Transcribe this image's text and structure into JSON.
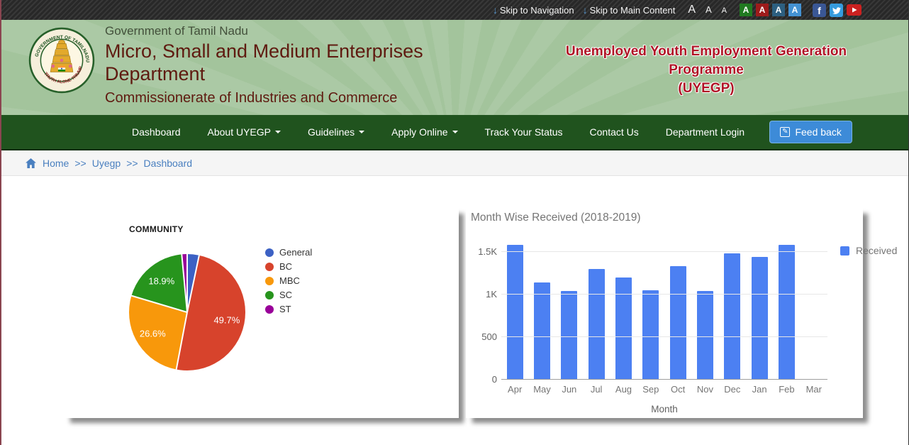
{
  "topbar": {
    "skip_to_navigation": "Skip to Navigation",
    "skip_to_main": "Skip to Main Content",
    "arrow_color": "#5b9bd5",
    "font_size_buttons": [
      "A",
      "A",
      "A"
    ],
    "font_theme_buttons": [
      {
        "label": "A",
        "bg": "#217a21"
      },
      {
        "label": "A",
        "bg": "#9e1b1b"
      },
      {
        "label": "A",
        "bg": "#2d5f80"
      },
      {
        "label": "A",
        "bg": "#4492d3"
      }
    ],
    "social_icons": [
      "facebook-icon",
      "twitter-icon",
      "youtube-icon"
    ]
  },
  "header": {
    "government_line": "Government of Tamil Nadu",
    "department_title": "Micro, Small and Medium Enterprises Department",
    "commissionerate_line": "Commissionerate of Industries and Commerce",
    "programme_title_lines": [
      "Unemployed Youth Employment Generation",
      "Programme",
      "(UYEGP)"
    ],
    "programme_color": "#b01225",
    "emblem_top_text": "GOVERNMENT OF TAMILNADU",
    "emblem_bottom_text": "TRUTH ALONE TRIUMPHS"
  },
  "nav": {
    "items": [
      {
        "label": "Dashboard",
        "caret": false
      },
      {
        "label": "About UYEGP",
        "caret": true
      },
      {
        "label": "Guidelines",
        "caret": true
      },
      {
        "label": "Apply Online",
        "caret": true
      },
      {
        "label": "Track Your Status",
        "caret": false
      },
      {
        "label": "Contact Us",
        "caret": false
      },
      {
        "label": "Department Login",
        "caret": false
      }
    ],
    "feedback_label": "Feed back"
  },
  "breadcrumb": {
    "items": [
      "Home",
      "Uyegp",
      "Dashboard"
    ],
    "separator": ">>"
  },
  "chart_data": [
    {
      "type": "pie",
      "title": "COMMUNITY",
      "slices": [
        {
          "label": "General",
          "value": 3.3,
          "color": "#3c61c4"
        },
        {
          "label": "BC",
          "value": 49.7,
          "color": "#d7432c"
        },
        {
          "label": "MBC",
          "value": 26.6,
          "color": "#f8980b"
        },
        {
          "label": "SC",
          "value": 18.9,
          "color": "#27941d"
        },
        {
          "label": "ST",
          "value": 1.5,
          "color": "#990099"
        }
      ],
      "value_format": "percent",
      "legend_position": "right",
      "label_min_pct": 5
    },
    {
      "type": "bar",
      "title": "Month Wise Received (2018-2019)",
      "categories": [
        "Apr",
        "May",
        "Jun",
        "Jul",
        "Aug",
        "Sep",
        "Oct",
        "Nov",
        "Dec",
        "Jan",
        "Feb",
        "Mar"
      ],
      "series": [
        {
          "name": "Received",
          "color": "#4c80f2",
          "values": [
            1580,
            1140,
            1045,
            1300,
            1200,
            1050,
            1335,
            1045,
            1485,
            1440,
            1585,
            0
          ]
        }
      ],
      "xlabel": "Month",
      "ylabel": "",
      "yticks": [
        {
          "value": 0,
          "label": "0"
        },
        {
          "value": 500,
          "label": "500"
        },
        {
          "value": 1000,
          "label": "1K"
        },
        {
          "value": 1500,
          "label": "1.5K"
        }
      ],
      "ylim": [
        0,
        1666
      ],
      "grid": true,
      "legend_position": "top-right"
    }
  ]
}
